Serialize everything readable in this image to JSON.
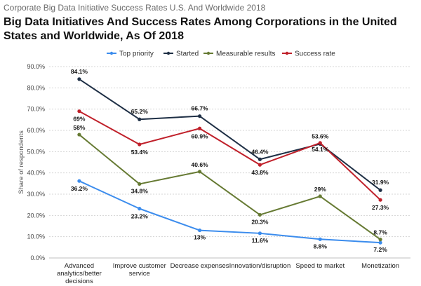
{
  "caption": "Corporate Big Data Initiative Success Rates U.S. And Worldwide 2018",
  "chart_data": {
    "type": "line",
    "title": "Big Data Initiatives And Success Rates Among Corporations in the United States and Worldwide, As Of 2018",
    "xlabel": "",
    "ylabel": "Share of respondents",
    "ylim": [
      0,
      90
    ],
    "yticks": [
      "0.0%",
      "10.0%",
      "20.0%",
      "30.0%",
      "40.0%",
      "50.0%",
      "60.0%",
      "70.0%",
      "80.0%",
      "90.0%"
    ],
    "categories": [
      [
        "Advanced",
        "analytics/better",
        "decisions"
      ],
      [
        "Improve customer",
        "service"
      ],
      [
        "Decrease expenses"
      ],
      [
        "Innovation/disruption"
      ],
      [
        "Speed to market"
      ],
      [
        "Monetization"
      ]
    ],
    "legend_position": "top",
    "series": [
      {
        "name": "Top priority",
        "color": "#3b8ced",
        "values": [
          36.2,
          23.2,
          13,
          11.6,
          8.8,
          7.2
        ],
        "labels": [
          "36.2%",
          "23.2%",
          "13%",
          "11.6%",
          "8.8%",
          "7.2%"
        ]
      },
      {
        "name": "Started",
        "color": "#1e2f45",
        "values": [
          84.1,
          65.2,
          66.7,
          46.4,
          53.6,
          31.9
        ],
        "labels": [
          "84.1%",
          "65.2%",
          "66.7%",
          "46.4%",
          "53.6%",
          "31.9%"
        ]
      },
      {
        "name": "Measurable results",
        "color": "#667a33",
        "values": [
          58,
          34.8,
          40.6,
          20.3,
          29,
          8.7
        ],
        "labels": [
          "58%",
          "34.8%",
          "40.6%",
          "20.3%",
          "29%",
          "8.7%"
        ]
      },
      {
        "name": "Success rate",
        "color": "#c0202a",
        "values": [
          69,
          53.4,
          60.9,
          43.8,
          54.1,
          27.3
        ],
        "labels": [
          "69%",
          "53.4%",
          "60.9%",
          "43.8%",
          "54.1%",
          "27.3%"
        ]
      }
    ]
  }
}
